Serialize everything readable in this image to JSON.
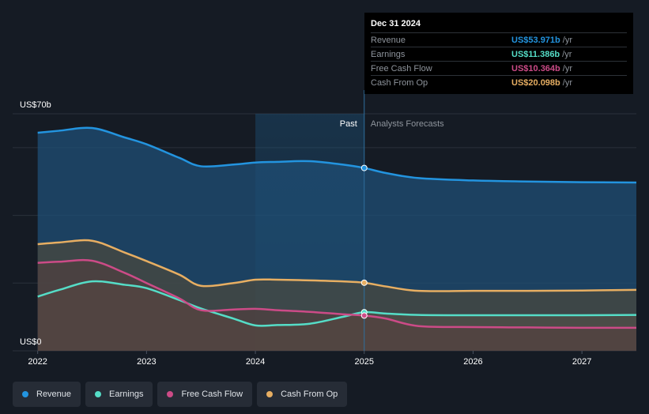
{
  "chart_data": {
    "type": "area",
    "ylim": [
      0,
      70
    ],
    "y_axis_labels": [
      "US$70b",
      "US$0"
    ],
    "x_tick_labels": [
      "2022",
      "2023",
      "2024",
      "2025",
      "2026",
      "2027"
    ],
    "x_tick_values": [
      2022,
      2023,
      2024,
      2025,
      2026,
      2027
    ],
    "xlim": [
      2021.77,
      2027.5
    ],
    "divider_x": 2025,
    "past_label": "Past",
    "forecast_label": "Analysts Forecasts",
    "series": [
      {
        "name": "Revenue",
        "color": "#2394df",
        "x": [
          2022.0,
          2022.2,
          2022.5,
          2022.8,
          2023.0,
          2023.3,
          2023.5,
          2023.8,
          2024.0,
          2024.2,
          2024.5,
          2024.8,
          2025.0,
          2025.2,
          2025.5,
          2026.0,
          2026.5,
          2027.0,
          2027.5
        ],
        "y": [
          64.4,
          65.0,
          65.8,
          63.0,
          61.0,
          57.0,
          54.5,
          55.0,
          55.6,
          55.8,
          56.0,
          55.0,
          54.0,
          52.5,
          51.0,
          50.3,
          50.0,
          49.8,
          49.7
        ]
      },
      {
        "name": "Earnings",
        "color": "#55ddc7",
        "x": [
          2022.0,
          2022.2,
          2022.5,
          2022.8,
          2023.0,
          2023.3,
          2023.5,
          2023.8,
          2024.0,
          2024.2,
          2024.5,
          2024.8,
          2025.0,
          2025.2,
          2025.5,
          2026.0,
          2026.5,
          2027.0,
          2027.5
        ],
        "y": [
          16.0,
          18.0,
          20.5,
          19.5,
          18.5,
          15.0,
          12.5,
          9.5,
          7.5,
          7.6,
          8.0,
          10.0,
          11.4,
          11.0,
          10.6,
          10.5,
          10.5,
          10.5,
          10.6
        ]
      },
      {
        "name": "Free Cash Flow",
        "color": "#cc4b87",
        "x": [
          2022.0,
          2022.2,
          2022.5,
          2022.8,
          2023.0,
          2023.3,
          2023.5,
          2023.8,
          2024.0,
          2024.2,
          2024.5,
          2024.8,
          2025.0,
          2025.2,
          2025.5,
          2026.0,
          2026.5,
          2027.0,
          2027.5
        ],
        "y": [
          26.0,
          26.3,
          26.6,
          23.0,
          20.0,
          15.5,
          12.0,
          12.2,
          12.4,
          12.0,
          11.5,
          10.8,
          10.4,
          9.5,
          7.3,
          7.0,
          6.9,
          6.8,
          6.8
        ]
      },
      {
        "name": "Cash From Op",
        "color": "#e7ae62",
        "x": [
          2022.0,
          2022.2,
          2022.5,
          2022.8,
          2023.0,
          2023.3,
          2023.5,
          2023.8,
          2024.0,
          2024.2,
          2024.5,
          2024.8,
          2025.0,
          2025.2,
          2025.5,
          2026.0,
          2026.5,
          2027.0,
          2027.5
        ],
        "y": [
          31.5,
          32.0,
          32.5,
          29.0,
          26.5,
          22.5,
          19.2,
          20.0,
          21.0,
          21.0,
          20.8,
          20.5,
          20.1,
          19.0,
          17.7,
          17.7,
          17.7,
          17.8,
          18.0
        ]
      }
    ],
    "tooltip": {
      "date": "Dec 31 2024",
      "rows": [
        {
          "label": "Revenue",
          "value": "US$53.971b",
          "unit": "/yr",
          "color": "#2394df"
        },
        {
          "label": "Earnings",
          "value": "US$11.386b",
          "unit": "/yr",
          "color": "#55ddc7"
        },
        {
          "label": "Free Cash Flow",
          "value": "US$10.364b",
          "unit": "/yr",
          "color": "#cc4b87"
        },
        {
          "label": "Cash From Op",
          "value": "US$20.098b",
          "unit": "/yr",
          "color": "#e7ae62"
        }
      ]
    }
  },
  "legend": [
    {
      "label": "Revenue",
      "color": "#2394df"
    },
    {
      "label": "Earnings",
      "color": "#55ddc7"
    },
    {
      "label": "Free Cash Flow",
      "color": "#cc4b87"
    },
    {
      "label": "Cash From Op",
      "color": "#e7ae62"
    }
  ]
}
